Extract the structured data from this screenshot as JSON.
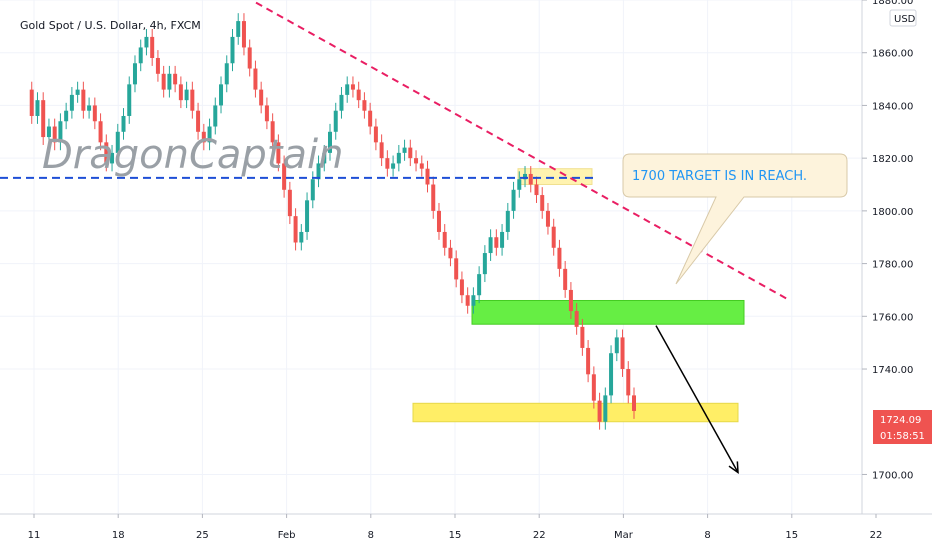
{
  "chart_data": {
    "type": "candlestick",
    "title": "Gold Spot / U.S. Dollar, 4h, FXCM",
    "watermark": "DragonCaptain",
    "currency": "USD",
    "ylim": [
      1685,
      1880
    ],
    "y_ticks": [
      "1880.00",
      "1860.00",
      "1840.00",
      "1820.00",
      "1800.00",
      "1780.00",
      "1760.00",
      "1740.00",
      "1700.00"
    ],
    "y_tick_values": [
      1880,
      1860,
      1840,
      1820,
      1800,
      1780,
      1760,
      1740,
      1700
    ],
    "x_ticks": [
      "11",
      "18",
      "25",
      "Feb",
      "8",
      "15",
      "22",
      "Mar",
      "8",
      "15",
      "22"
    ],
    "last_price": "1724.09",
    "countdown": "01:58:51",
    "colors": {
      "up": "#26a69a",
      "down": "#ef5350",
      "trendline": "#e91e63",
      "hline": "#1e4fd6",
      "support_zone": "#66ee44",
      "target_zone": "#ffee66",
      "callout_bg": "#fdf3dc",
      "callout_text": "#2196f3",
      "badge": "#ef5350"
    },
    "price_path": [
      1846,
      1836,
      1842,
      1828,
      1832,
      1826,
      1834,
      1838,
      1844,
      1846,
      1838,
      1840,
      1834,
      1826,
      1818,
      1822,
      1830,
      1836,
      1848,
      1856,
      1862,
      1866,
      1858,
      1852,
      1846,
      1852,
      1848,
      1842,
      1846,
      1838,
      1830,
      1826,
      1832,
      1840,
      1848,
      1856,
      1866,
      1872,
      1862,
      1854,
      1846,
      1840,
      1834,
      1826,
      1818,
      1808,
      1798,
      1788,
      1792,
      1804,
      1812,
      1818,
      1822,
      1830,
      1838,
      1844,
      1848,
      1846,
      1842,
      1838,
      1832,
      1826,
      1820,
      1816,
      1818,
      1822,
      1824,
      1820,
      1818,
      1816,
      1810,
      1800,
      1792,
      1786,
      1782,
      1774,
      1768,
      1764,
      1768,
      1776,
      1784,
      1790,
      1786,
      1792,
      1800,
      1808,
      1812,
      1814,
      1810,
      1806,
      1800,
      1794,
      1786,
      1778,
      1770,
      1762,
      1756,
      1748,
      1738,
      1728,
      1720,
      1730,
      1746,
      1752,
      1740,
      1730,
      1724.09
    ],
    "hline_value": 1812.5,
    "trendline": {
      "from": [
        1879,
        0
      ],
      "to": [
        1766,
        1
      ]
    },
    "support_zone": {
      "y_min": 1757,
      "y_max": 1766
    },
    "target_zone": {
      "y_min": 1720,
      "y_max": 1727
    },
    "small_zone": {
      "y_min": 1810,
      "y_max": 1816
    },
    "callout": {
      "text": "1700 TARGET IS IN REACH."
    },
    "arrow": {
      "from_value": 1758,
      "to_value": 1700
    }
  }
}
